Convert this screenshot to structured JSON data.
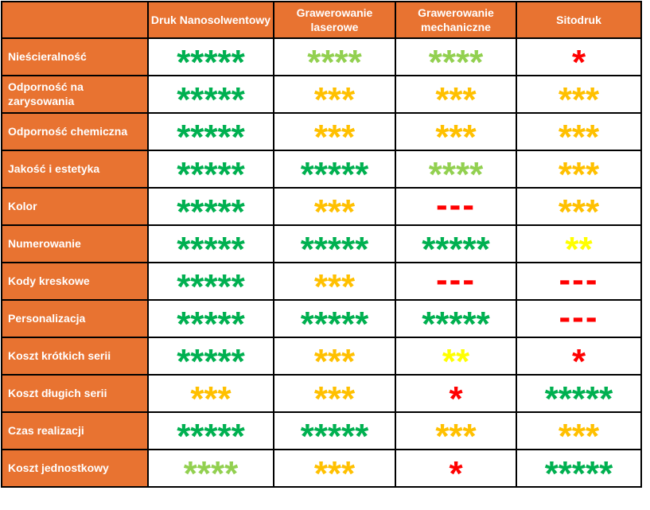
{
  "colors": {
    "header_bg": "#E87331",
    "header_text": "#FFFFFF",
    "cell_bg": "#FFFFFF",
    "border": "#000000",
    "green": "#00B050",
    "light_green": "#92D050",
    "orange": "#FFC000",
    "yellow": "#FFFF00",
    "red": "#FF0000"
  },
  "table": {
    "columns": [
      "",
      "Druk Nanosolwentowy",
      "Grawerowanie laserowe",
      "Grawerowanie mechaniczne",
      "Sitodruk"
    ],
    "rows": [
      {
        "label": "Nieścieralność",
        "cells": [
          {
            "kind": "stars",
            "count": 5,
            "color": "green",
            "text": "*****"
          },
          {
            "kind": "stars",
            "count": 4,
            "color": "light_green",
            "text": "****"
          },
          {
            "kind": "stars",
            "count": 4,
            "color": "light_green",
            "text": "****"
          },
          {
            "kind": "stars",
            "count": 1,
            "color": "red",
            "text": "*"
          }
        ]
      },
      {
        "label": "Odporność na zarysowania",
        "cells": [
          {
            "kind": "stars",
            "count": 5,
            "color": "green",
            "text": "*****"
          },
          {
            "kind": "stars",
            "count": 3,
            "color": "orange",
            "text": "***"
          },
          {
            "kind": "stars",
            "count": 3,
            "color": "orange",
            "text": "***"
          },
          {
            "kind": "stars",
            "count": 3,
            "color": "orange",
            "text": "***"
          }
        ]
      },
      {
        "label": "Odporność chemiczna",
        "cells": [
          {
            "kind": "stars",
            "count": 5,
            "color": "green",
            "text": "*****"
          },
          {
            "kind": "stars",
            "count": 3,
            "color": "orange",
            "text": "***"
          },
          {
            "kind": "stars",
            "count": 3,
            "color": "orange",
            "text": "***"
          },
          {
            "kind": "stars",
            "count": 3,
            "color": "orange",
            "text": "***"
          }
        ]
      },
      {
        "label": "Jakość i estetyka",
        "cells": [
          {
            "kind": "stars",
            "count": 5,
            "color": "green",
            "text": "*****"
          },
          {
            "kind": "stars",
            "count": 5,
            "color": "green",
            "text": "*****"
          },
          {
            "kind": "stars",
            "count": 4,
            "color": "light_green",
            "text": "****"
          },
          {
            "kind": "stars",
            "count": 3,
            "color": "orange",
            "text": "***"
          }
        ]
      },
      {
        "label": "Kolor",
        "cells": [
          {
            "kind": "stars",
            "count": 5,
            "color": "green",
            "text": "*****"
          },
          {
            "kind": "stars",
            "count": 3,
            "color": "orange",
            "text": "***"
          },
          {
            "kind": "dashes",
            "count": 0,
            "color": "red",
            "text": "---"
          },
          {
            "kind": "stars",
            "count": 3,
            "color": "orange",
            "text": "***"
          }
        ]
      },
      {
        "label": "Numerowanie",
        "cells": [
          {
            "kind": "stars",
            "count": 5,
            "color": "green",
            "text": "*****"
          },
          {
            "kind": "stars",
            "count": 5,
            "color": "green",
            "text": "*****"
          },
          {
            "kind": "stars",
            "count": 5,
            "color": "green",
            "text": "*****"
          },
          {
            "kind": "stars",
            "count": 2,
            "color": "yellow",
            "text": "**"
          }
        ]
      },
      {
        "label": "Kody kreskowe",
        "cells": [
          {
            "kind": "stars",
            "count": 5,
            "color": "green",
            "text": "*****"
          },
          {
            "kind": "stars",
            "count": 3,
            "color": "orange",
            "text": "***"
          },
          {
            "kind": "dashes",
            "count": 0,
            "color": "red",
            "text": "---"
          },
          {
            "kind": "dashes",
            "count": 0,
            "color": "red",
            "text": "---"
          }
        ]
      },
      {
        "label": "Personalizacja",
        "cells": [
          {
            "kind": "stars",
            "count": 5,
            "color": "green",
            "text": "*****"
          },
          {
            "kind": "stars",
            "count": 5,
            "color": "green",
            "text": "*****"
          },
          {
            "kind": "stars",
            "count": 5,
            "color": "green",
            "text": "*****"
          },
          {
            "kind": "dashes",
            "count": 0,
            "color": "red",
            "text": "---"
          }
        ]
      },
      {
        "label": "Koszt krótkich serii",
        "cells": [
          {
            "kind": "stars",
            "count": 5,
            "color": "green",
            "text": "*****"
          },
          {
            "kind": "stars",
            "count": 3,
            "color": "orange",
            "text": "***"
          },
          {
            "kind": "stars",
            "count": 2,
            "color": "yellow",
            "text": "**"
          },
          {
            "kind": "stars",
            "count": 1,
            "color": "red",
            "text": "*"
          }
        ]
      },
      {
        "label": "Koszt długich serii",
        "cells": [
          {
            "kind": "stars",
            "count": 3,
            "color": "orange",
            "text": "***"
          },
          {
            "kind": "stars",
            "count": 3,
            "color": "orange",
            "text": "***"
          },
          {
            "kind": "stars",
            "count": 1,
            "color": "red",
            "text": "*"
          },
          {
            "kind": "stars",
            "count": 5,
            "color": "green",
            "text": "*****"
          }
        ]
      },
      {
        "label": "Czas realizacji",
        "cells": [
          {
            "kind": "stars",
            "count": 5,
            "color": "green",
            "text": "*****"
          },
          {
            "kind": "stars",
            "count": 5,
            "color": "green",
            "text": "*****"
          },
          {
            "kind": "stars",
            "count": 3,
            "color": "orange",
            "text": "***"
          },
          {
            "kind": "stars",
            "count": 3,
            "color": "orange",
            "text": "***"
          }
        ]
      },
      {
        "label": "Koszt jednostkowy",
        "cells": [
          {
            "kind": "stars",
            "count": 4,
            "color": "light_green",
            "text": "****"
          },
          {
            "kind": "stars",
            "count": 3,
            "color": "orange",
            "text": "***"
          },
          {
            "kind": "stars",
            "count": 1,
            "color": "red",
            "text": "*"
          },
          {
            "kind": "stars",
            "count": 5,
            "color": "green",
            "text": "*****"
          }
        ]
      }
    ]
  }
}
